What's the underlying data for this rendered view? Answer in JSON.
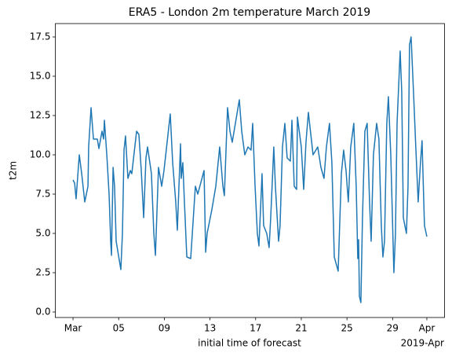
{
  "chart_data": {
    "type": "line",
    "title": "ERA5 - London 2m temperature March 2019",
    "xlabel": "initial time of forecast",
    "ylabel": "t2m",
    "x_offset_label": "2019-Apr",
    "color": "#1f77b4",
    "x": [
      1.0,
      1.14,
      1.27,
      1.55,
      1.76,
      2.03,
      2.31,
      2.37,
      2.58,
      2.79,
      3.13,
      3.27,
      3.54,
      3.68,
      3.75,
      3.96,
      4.16,
      4.3,
      4.37,
      4.51,
      4.64,
      4.78,
      5.19,
      5.33,
      5.47,
      5.6,
      5.81,
      6.02,
      6.15,
      6.57,
      6.77,
      6.98,
      7.19,
      7.39,
      7.53,
      7.87,
      8.08,
      8.22,
      8.49,
      8.77,
      8.97,
      9.52,
      9.73,
      10.0,
      10.14,
      10.28,
      10.42,
      10.48,
      10.62,
      10.76,
      10.97,
      11.31,
      11.72,
      11.93,
      12.48,
      12.62,
      12.75,
      13.16,
      13.51,
      13.85,
      14.13,
      14.26,
      14.54,
      14.75,
      14.95,
      15.57,
      15.78,
      16.05,
      16.33,
      16.6,
      16.74,
      16.95,
      17.15,
      17.29,
      17.56,
      17.7,
      17.97,
      18.18,
      18.32,
      18.59,
      18.73,
      19.01,
      19.14,
      19.35,
      19.56,
      19.76,
      20.04,
      20.18,
      20.38,
      20.59,
      20.66,
      21.0,
      21.21,
      21.41,
      21.62,
      22.03,
      22.44,
      22.72,
      22.99,
      23.2,
      23.47,
      23.68,
      23.89,
      24.23,
      24.51,
      24.71,
      24.92,
      25.12,
      25.33,
      25.6,
      25.81,
      25.95,
      26.02,
      26.09,
      26.22,
      26.36,
      26.57,
      26.77,
      26.98,
      27.12,
      27.32,
      27.6,
      27.8,
      28.01,
      28.15,
      28.29,
      28.49,
      28.63,
      28.84,
      29.11,
      29.25,
      29.39,
      29.66,
      29.8,
      29.94,
      30.21,
      30.35,
      30.48,
      30.62,
      30.83,
      31.03,
      31.24,
      31.44,
      31.58,
      31.79,
      32.0
    ],
    "values": [
      8.4,
      8.2,
      7.2,
      10.0,
      8.8,
      7.0,
      8.0,
      10.5,
      13.0,
      11.0,
      11.0,
      10.4,
      11.5,
      11.0,
      12.2,
      10.0,
      7.5,
      4.5,
      3.6,
      9.2,
      8.0,
      4.5,
      2.7,
      5.0,
      10.3,
      11.2,
      8.5,
      9.0,
      8.8,
      11.5,
      11.3,
      9.0,
      6.0,
      9.8,
      10.5,
      8.8,
      5.0,
      3.6,
      9.2,
      8.0,
      9.0,
      12.6,
      9.5,
      7.0,
      5.2,
      8.0,
      10.7,
      8.5,
      9.5,
      7.0,
      3.5,
      3.4,
      8.0,
      7.5,
      9.0,
      3.8,
      5.0,
      6.5,
      8.0,
      10.5,
      8.0,
      7.4,
      13.0,
      11.5,
      10.8,
      13.5,
      11.5,
      10.0,
      10.5,
      10.3,
      12.0,
      8.0,
      5.0,
      4.2,
      8.8,
      5.5,
      5.0,
      4.1,
      6.0,
      10.5,
      8.0,
      4.5,
      5.5,
      10.5,
      12.0,
      9.8,
      9.6,
      12.2,
      8.0,
      7.8,
      12.4,
      10.5,
      7.8,
      10.8,
      12.7,
      10.0,
      10.5,
      9.2,
      8.5,
      10.5,
      12.0,
      9.5,
      3.5,
      2.6,
      8.8,
      10.3,
      9.0,
      7.0,
      10.5,
      12.0,
      8.0,
      3.4,
      4.6,
      1.0,
      0.6,
      6.0,
      11.5,
      12.0,
      7.0,
      4.5,
      10.0,
      12.0,
      11.0,
      5.5,
      3.5,
      4.5,
      12.0,
      13.7,
      10.0,
      2.5,
      5.0,
      12.0,
      16.6,
      14.0,
      6.0,
      5.0,
      8.0,
      17.0,
      17.5,
      14.0,
      10.5,
      7.0,
      9.5,
      10.9,
      5.5,
      4.8
    ],
    "xlim": [
      -0.55,
      33.55
    ],
    "xticks": [
      {
        "value": 1,
        "label": "Mar"
      },
      {
        "value": 5,
        "label": "05"
      },
      {
        "value": 9,
        "label": "09"
      },
      {
        "value": 13,
        "label": "13"
      },
      {
        "value": 17,
        "label": "17"
      },
      {
        "value": 21,
        "label": "21"
      },
      {
        "value": 25,
        "label": "25"
      },
      {
        "value": 29,
        "label": "29"
      },
      {
        "value": 32,
        "label": "Apr"
      }
    ],
    "ylim": [
      -0.35,
      18.35
    ],
    "yticks": [
      {
        "value": 0,
        "label": "0.0"
      },
      2.5,
      {
        "value": 5,
        "label": "5.0"
      },
      7.5,
      {
        "value": 10,
        "label": "10.0"
      },
      12.5,
      {
        "value": 15,
        "label": "15.0"
      },
      17.5
    ]
  }
}
